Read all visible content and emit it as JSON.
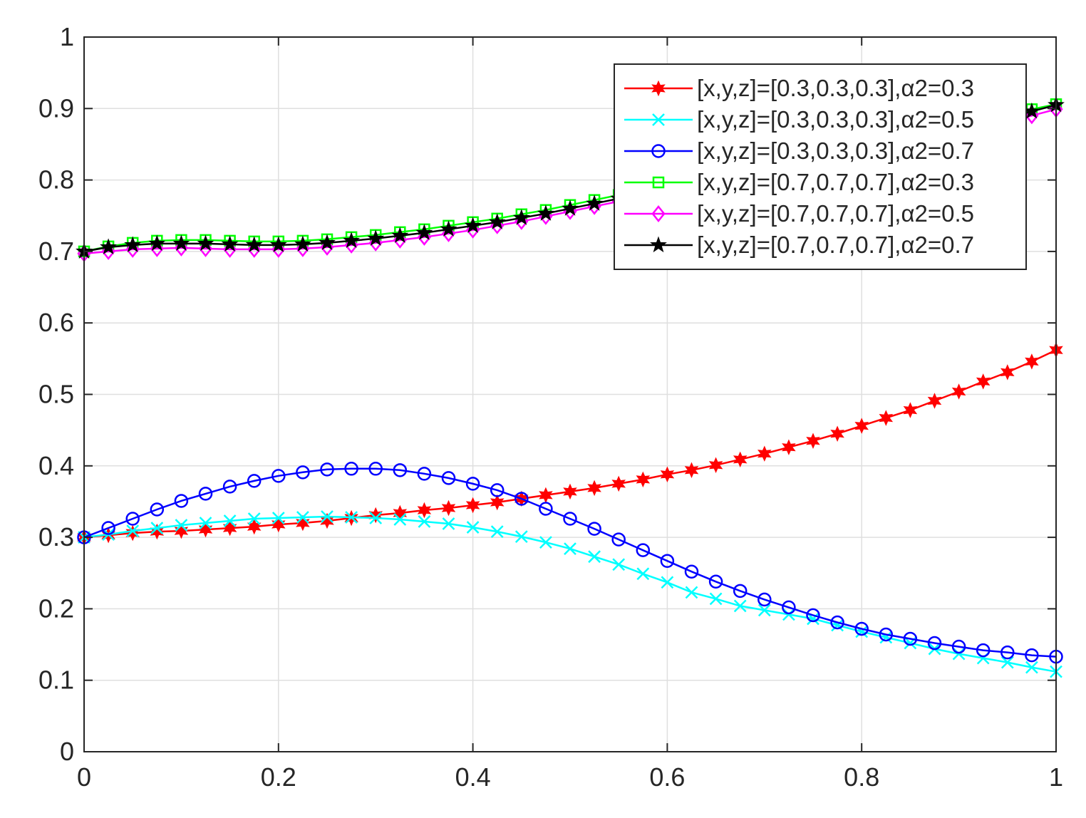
{
  "chart_data": {
    "type": "line",
    "title": "",
    "xlabel": "",
    "ylabel": "",
    "xlim": [
      0,
      1
    ],
    "ylim": [
      0,
      1
    ],
    "grid": true,
    "legend_position": "top-right",
    "x_ticks": [
      "0",
      "0.2",
      "0.4",
      "0.6",
      "0.8",
      "1"
    ],
    "y_ticks": [
      "0",
      "0.1",
      "0.2",
      "0.3",
      "0.4",
      "0.5",
      "0.6",
      "0.7",
      "0.8",
      "0.9",
      "1"
    ],
    "x": [
      0,
      0.025,
      0.05,
      0.075,
      0.1,
      0.125,
      0.15,
      0.175,
      0.2,
      0.225,
      0.25,
      0.275,
      0.3,
      0.325,
      0.35,
      0.375,
      0.4,
      0.425,
      0.45,
      0.475,
      0.5,
      0.525,
      0.55,
      0.575,
      0.6,
      0.625,
      0.65,
      0.675,
      0.7,
      0.725,
      0.75,
      0.775,
      0.8,
      0.825,
      0.85,
      0.875,
      0.9,
      0.925,
      0.95,
      0.975,
      1
    ],
    "series": [
      {
        "name": "[x,y,z]=[0.3,0.3,0.3],α2=0.3",
        "color": "#ff0000",
        "marker": "star6",
        "values": [
          0.3,
          0.303,
          0.306,
          0.308,
          0.309,
          0.311,
          0.313,
          0.315,
          0.318,
          0.32,
          0.323,
          0.327,
          0.331,
          0.334,
          0.338,
          0.341,
          0.345,
          0.349,
          0.354,
          0.359,
          0.364,
          0.369,
          0.375,
          0.381,
          0.388,
          0.394,
          0.401,
          0.409,
          0.417,
          0.426,
          0.435,
          0.445,
          0.456,
          0.467,
          0.478,
          0.491,
          0.504,
          0.518,
          0.531,
          0.546,
          0.562
        ]
      },
      {
        "name": "[x,y,z]=[0.3,0.3,0.3],α2=0.5",
        "color": "#00ffff",
        "marker": "x",
        "values": [
          0.3,
          0.304,
          0.309,
          0.313,
          0.317,
          0.32,
          0.323,
          0.326,
          0.327,
          0.328,
          0.329,
          0.328,
          0.327,
          0.325,
          0.322,
          0.319,
          0.314,
          0.308,
          0.301,
          0.293,
          0.284,
          0.273,
          0.262,
          0.249,
          0.237,
          0.223,
          0.214,
          0.204,
          0.198,
          0.192,
          0.186,
          0.177,
          0.168,
          0.16,
          0.152,
          0.144,
          0.137,
          0.131,
          0.125,
          0.118,
          0.112
        ]
      },
      {
        "name": "[x,y,z]=[0.3,0.3,0.3],α2=0.7",
        "color": "#0000ff",
        "marker": "circle",
        "values": [
          0.3,
          0.313,
          0.326,
          0.339,
          0.351,
          0.361,
          0.371,
          0.379,
          0.386,
          0.391,
          0.395,
          0.396,
          0.396,
          0.394,
          0.389,
          0.383,
          0.375,
          0.366,
          0.354,
          0.34,
          0.326,
          0.312,
          0.297,
          0.282,
          0.267,
          0.252,
          0.238,
          0.225,
          0.213,
          0.202,
          0.191,
          0.181,
          0.172,
          0.164,
          0.158,
          0.152,
          0.147,
          0.142,
          0.139,
          0.135,
          0.133
        ]
      },
      {
        "name": "[x,y,z]=[0.7,0.7,0.7],α2=0.3",
        "color": "#00ff00",
        "marker": "square",
        "values": [
          0.7,
          0.707,
          0.712,
          0.715,
          0.716,
          0.716,
          0.715,
          0.714,
          0.714,
          0.715,
          0.717,
          0.72,
          0.723,
          0.727,
          0.731,
          0.736,
          0.741,
          0.746,
          0.752,
          0.758,
          0.765,
          0.772,
          0.779,
          0.786,
          0.793,
          0.8,
          0.807,
          0.814,
          0.821,
          0.828,
          0.835,
          0.842,
          0.849,
          0.856,
          0.863,
          0.87,
          0.877,
          0.884,
          0.891,
          0.899,
          0.906
        ]
      },
      {
        "name": "[x,y,z]=[0.7,0.7,0.7],α2=0.5",
        "color": "#ff00ff",
        "marker": "diamond",
        "values": [
          0.697,
          0.7,
          0.703,
          0.704,
          0.705,
          0.704,
          0.703,
          0.703,
          0.703,
          0.704,
          0.706,
          0.709,
          0.712,
          0.716,
          0.72,
          0.725,
          0.73,
          0.736,
          0.742,
          0.749,
          0.756,
          0.763,
          0.77,
          0.777,
          0.784,
          0.791,
          0.798,
          0.805,
          0.812,
          0.819,
          0.826,
          0.833,
          0.84,
          0.847,
          0.854,
          0.861,
          0.868,
          0.875,
          0.882,
          0.89,
          0.899
        ]
      },
      {
        "name": "[x,y,z]=[0.7,0.7,0.7],α2=0.7",
        "color": "#000000",
        "marker": "star5",
        "values": [
          0.7,
          0.706,
          0.709,
          0.711,
          0.711,
          0.711,
          0.71,
          0.709,
          0.709,
          0.71,
          0.712,
          0.715,
          0.718,
          0.722,
          0.726,
          0.731,
          0.736,
          0.741,
          0.747,
          0.753,
          0.76,
          0.767,
          0.774,
          0.781,
          0.788,
          0.795,
          0.802,
          0.809,
          0.816,
          0.823,
          0.83,
          0.837,
          0.844,
          0.851,
          0.858,
          0.865,
          0.872,
          0.879,
          0.886,
          0.896,
          0.905
        ]
      }
    ]
  }
}
